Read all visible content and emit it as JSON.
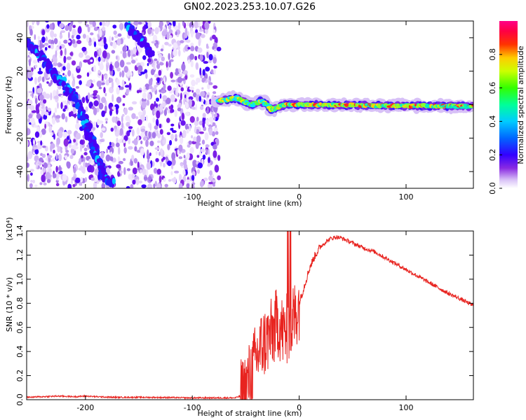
{
  "title": "GN02.2023.253.10.07.G26",
  "chart_data": [
    {
      "type": "heatmap",
      "title": "GN02.2023.253.10.07.G26",
      "xlabel": "Height of straight line (km)",
      "ylabel": "Frequency (Hz)",
      "xlim": [
        -255,
        163
      ],
      "ylim": [
        -50,
        50
      ],
      "x_ticks": [
        -200,
        -100,
        0,
        100
      ],
      "x_tick_labels": [
        "-200",
        "-100",
        "0",
        "100"
      ],
      "y_ticks": [
        -40,
        -20,
        0,
        20,
        40
      ],
      "y_tick_labels": [
        "-40",
        "-20",
        "0",
        "20",
        "40"
      ],
      "colorbar": {
        "label": "Normalized spectral amplitude",
        "range": [
          0,
          1
        ],
        "ticks": [
          0.0,
          0.2,
          0.4,
          0.6,
          0.8
        ],
        "tick_labels": [
          "0.0",
          "0.2",
          "0.4",
          "0.6",
          "0.8"
        ],
        "colormap": "rainbow (violet-blue-cyan-green-yellow-red-magenta)"
      },
      "noise_region_x": [
        -255,
        -75
      ],
      "features": [
        {
          "name": "",
          "kind": "diagonal streak",
          "points": [
            [
              -255,
              38
            ],
            [
              -240,
              28
            ],
            [
              -225,
              15
            ],
            [
              -210,
              4
            ],
            [
              -200,
              -10
            ],
            [
              -195,
              -20
            ],
            [
              -190,
              -30
            ],
            [
              -182,
              -42
            ],
            [
              -175,
              -48
            ]
          ]
        },
        {
          "name": "",
          "kind": "diagonal streak",
          "points": [
            [
              -160,
              47
            ],
            [
              -150,
              40
            ],
            [
              -142,
              34
            ],
            [
              -138,
              29
            ]
          ]
        },
        {
          "name": "",
          "kind": "carrier line",
          "points": [
            [
              -75,
              2
            ],
            [
              -60,
              4
            ],
            [
              -45,
              0
            ],
            [
              -35,
              2
            ],
            [
              -25,
              -3
            ],
            [
              -15,
              0
            ],
            [
              0,
              0
            ],
            [
              163,
              -1
            ]
          ]
        }
      ],
      "grid": false
    },
    {
      "type": "line",
      "xlabel": "Height of straight line (km)",
      "ylabel": "SNR (10 * v/v)",
      "y_multiplier": "(x10⁴)",
      "xlim": [
        -255,
        163
      ],
      "ylim": [
        0,
        1.4
      ],
      "x_ticks": [
        -200,
        -100,
        0,
        100
      ],
      "x_tick_labels": [
        "-200",
        "-100",
        "0",
        "100"
      ],
      "y_ticks": [
        0.0,
        0.2,
        0.4,
        0.6,
        0.8,
        1.0,
        1.2,
        1.4
      ],
      "y_tick_labels": [
        "0.0",
        "0.2",
        "0.4",
        "0.6",
        "0.8",
        "1.0",
        "1.2",
        "1.4"
      ],
      "series": [
        {
          "color": "#e8231f",
          "x": [
            -255,
            -240,
            -225,
            -210,
            -200,
            -190,
            -175,
            -150,
            -125,
            -100,
            -75,
            -60,
            -55,
            -50,
            -45,
            -40,
            -35,
            -30,
            -25,
            -20,
            -15,
            -10,
            -8,
            -5,
            0,
            5,
            10,
            15,
            20,
            25,
            30,
            35,
            40,
            50,
            60,
            70,
            80,
            90,
            100,
            110,
            120,
            130,
            140,
            150,
            163
          ],
          "y": [
            0.02,
            0.025,
            0.03,
            0.025,
            0.03,
            0.025,
            0.02,
            0.02,
            0.018,
            0.015,
            0.015,
            0.015,
            0.03,
            0.1,
            0.22,
            0.35,
            0.45,
            0.5,
            0.55,
            0.65,
            0.55,
            0.6,
            0.62,
            0.68,
            0.8,
            0.95,
            1.1,
            1.2,
            1.27,
            1.31,
            1.34,
            1.35,
            1.34,
            1.3,
            1.26,
            1.23,
            1.18,
            1.13,
            1.08,
            1.03,
            0.98,
            0.93,
            0.88,
            0.84,
            0.78
          ]
        }
      ],
      "grid": false
    }
  ]
}
